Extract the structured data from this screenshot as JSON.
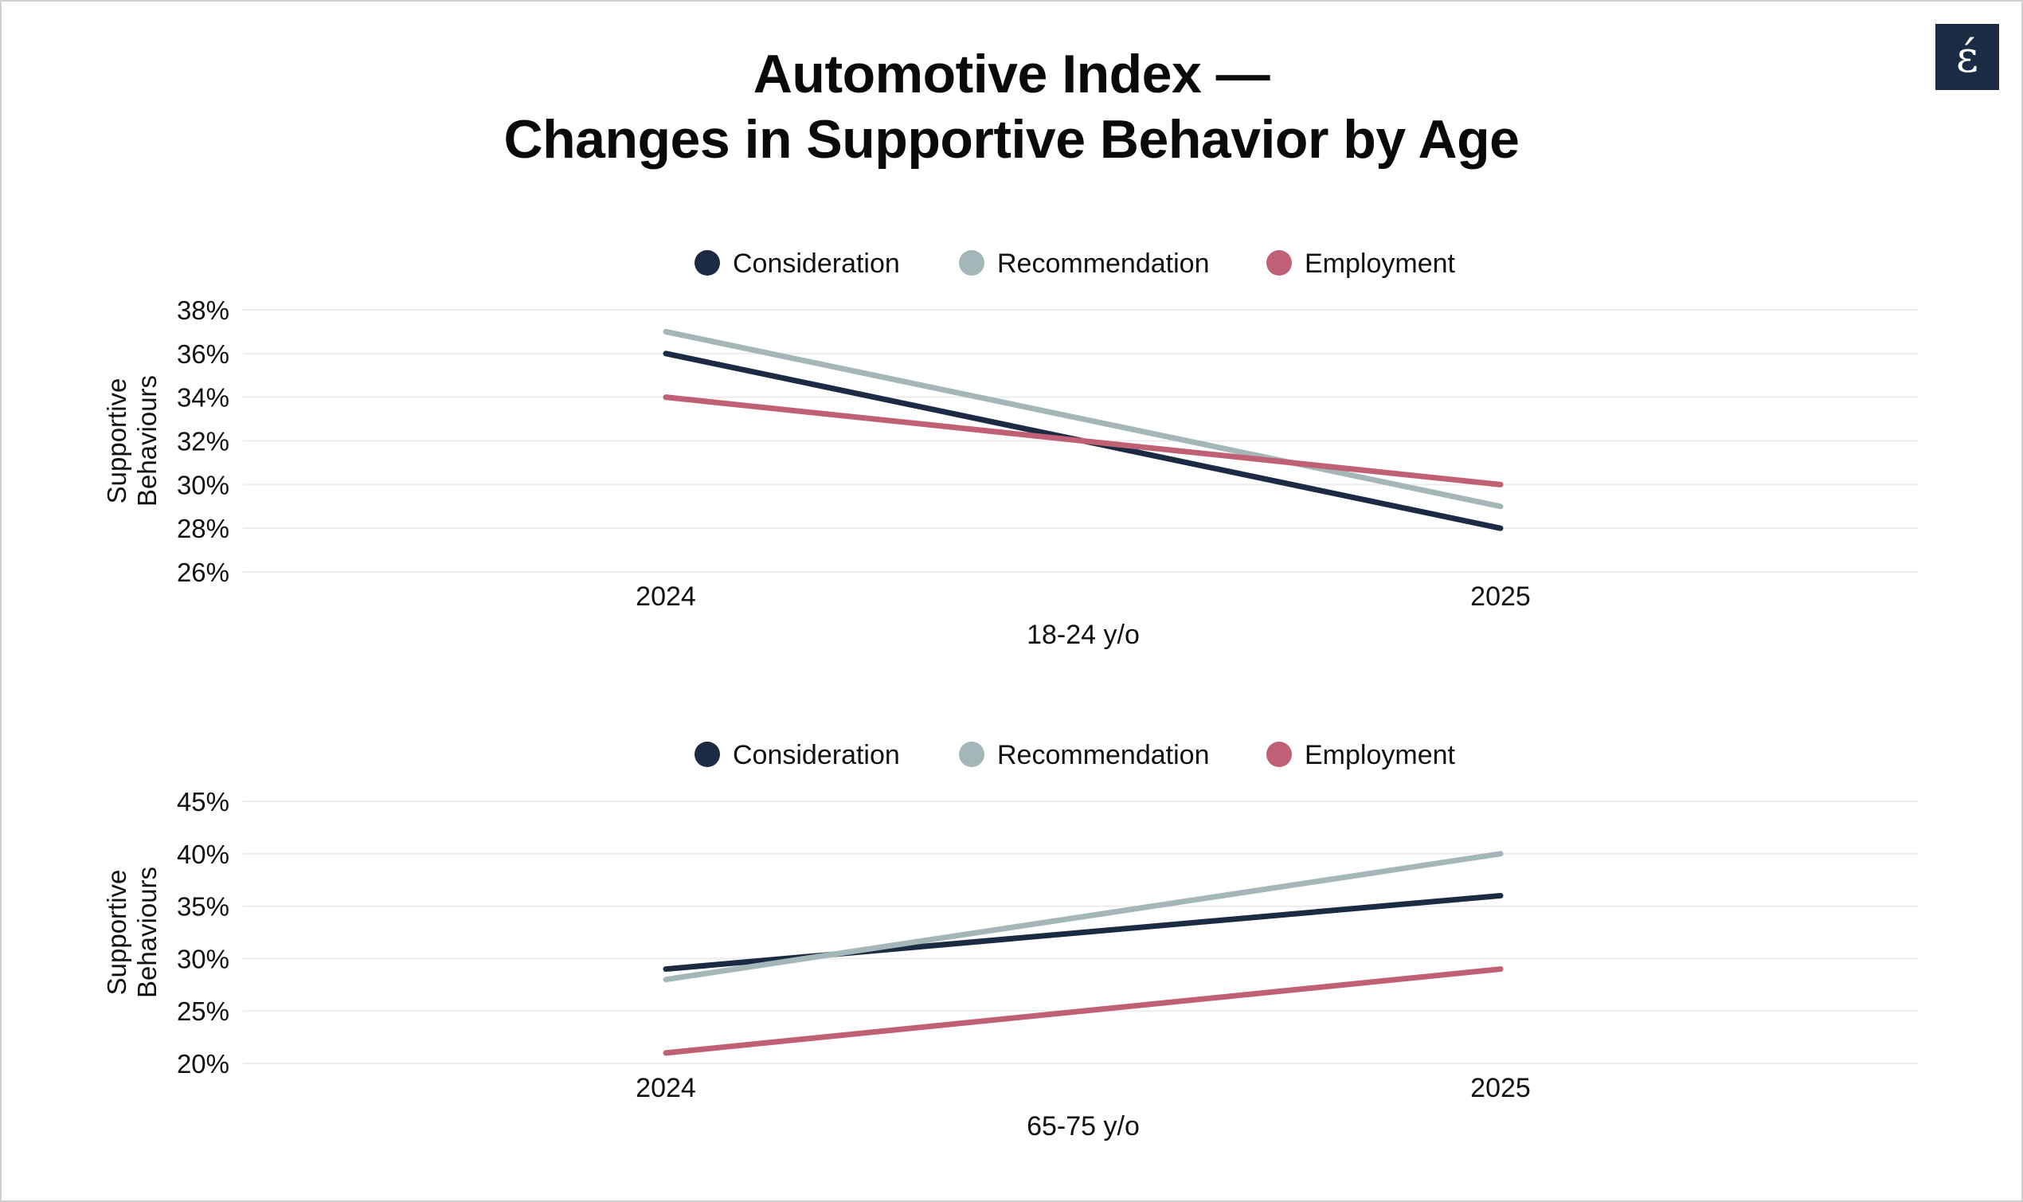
{
  "title": {
    "line1": "Automotive Index —",
    "line2": "Changes in Supportive Behavior by Age"
  },
  "logo": {
    "glyph": "ɛ́",
    "icon": "brand-logo-icon",
    "background": "#1c2b44"
  },
  "colors": {
    "Consideration": "#1c2b44",
    "Recommendation": "#a4b7b8",
    "Employment": "#c06074"
  },
  "chart_data": [
    {
      "type": "line",
      "categories": [
        "2024",
        "2025"
      ],
      "xlabel": "18-24 y/o",
      "ylabel": "Supportive Behaviours",
      "ylim": [
        26,
        38
      ],
      "yticks": [
        "26%",
        "28%",
        "30%",
        "32%",
        "34%",
        "36%",
        "38%"
      ],
      "grid": true,
      "legend": "top-center",
      "series": [
        {
          "name": "Consideration",
          "values": [
            36,
            28
          ]
        },
        {
          "name": "Recommendation",
          "values": [
            37,
            29
          ]
        },
        {
          "name": "Employment",
          "values": [
            34,
            30
          ]
        }
      ]
    },
    {
      "type": "line",
      "categories": [
        "2024",
        "2025"
      ],
      "xlabel": "65-75 y/o",
      "ylabel": "Supportive Behaviours",
      "ylim": [
        20,
        45
      ],
      "yticks": [
        "20%",
        "25%",
        "30%",
        "35%",
        "40%",
        "45%"
      ],
      "grid": true,
      "legend": "top-center",
      "series": [
        {
          "name": "Consideration",
          "values": [
            29,
            36
          ]
        },
        {
          "name": "Recommendation",
          "values": [
            28,
            40
          ]
        },
        {
          "name": "Employment",
          "values": [
            21,
            29
          ]
        }
      ]
    }
  ]
}
